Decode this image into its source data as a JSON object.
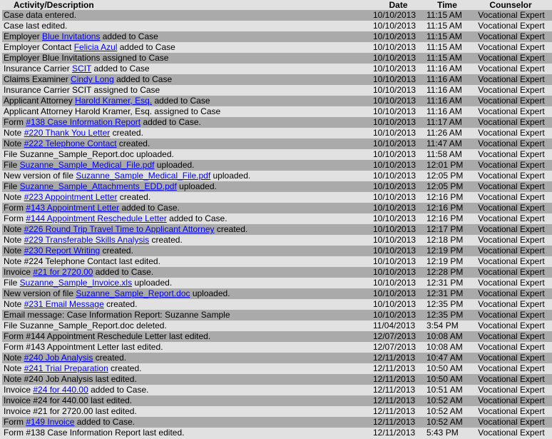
{
  "headers": {
    "activity": "Activity/Description",
    "date": "Date",
    "time": "Time",
    "counselor": "Counselor"
  },
  "colors": {
    "row_dark": "#aaaaaa",
    "row_light": "#e1e1e1",
    "link": "#0000ee"
  },
  "rows": [
    {
      "pre": "Case data entered.",
      "link": "",
      "post": "",
      "date": "10/10/2013",
      "time": "11:15 AM",
      "counselor": "Vocational Expert"
    },
    {
      "pre": "Case last edited.",
      "link": "",
      "post": "",
      "date": "10/10/2013",
      "time": "11:15 AM",
      "counselor": "Vocational Expert"
    },
    {
      "pre": "Employer ",
      "link": "Blue Invitations",
      "post": " added to Case",
      "date": "10/10/2013",
      "time": "11:15 AM",
      "counselor": "Vocational Expert"
    },
    {
      "pre": "Employer Contact ",
      "link": "Felicia Azul",
      "post": " added to Case",
      "date": "10/10/2013",
      "time": "11:15 AM",
      "counselor": "Vocational Expert"
    },
    {
      "pre": "Employer Blue Invitations assigned to Case",
      "link": "",
      "post": "",
      "date": "10/10/2013",
      "time": "11:15 AM",
      "counselor": "Vocational Expert"
    },
    {
      "pre": "Insurance Carrier ",
      "link": "SCIT",
      "post": " added to Case",
      "date": "10/10/2013",
      "time": "11:16 AM",
      "counselor": "Vocational Expert"
    },
    {
      "pre": "Claims Examiner ",
      "link": "Cindy Long",
      "post": " added to Case",
      "date": "10/10/2013",
      "time": "11:16 AM",
      "counselor": "Vocational Expert"
    },
    {
      "pre": "Insurance Carrier SCIT assigned to Case",
      "link": "",
      "post": "",
      "date": "10/10/2013",
      "time": "11:16 AM",
      "counselor": "Vocational Expert"
    },
    {
      "pre": "Applicant Attorney ",
      "link": "Harold Kramer, Esq.",
      "post": " added to Case",
      "date": "10/10/2013",
      "time": "11:16 AM",
      "counselor": "Vocational Expert"
    },
    {
      "pre": "Applicant Attorney Harold Kramer, Esq. assigned to Case",
      "link": "",
      "post": "",
      "date": "10/10/2013",
      "time": "11:16 AM",
      "counselor": "Vocational Expert"
    },
    {
      "pre": "Form ",
      "link": "#138 Case Information Report",
      "post": " added to Case.",
      "date": "10/10/2013",
      "time": "11:17 AM",
      "counselor": "Vocational Expert"
    },
    {
      "pre": "Note ",
      "link": "#220 Thank You Letter",
      "post": " created.",
      "date": "10/10/2013",
      "time": "11:26 AM",
      "counselor": "Vocational Expert"
    },
    {
      "pre": "Note ",
      "link": "#222 Telephone Contact",
      "post": " created.",
      "date": "10/10/2013",
      "time": "11:47 AM",
      "counselor": "Vocational Expert"
    },
    {
      "pre": "File Suzanne_Sample_Report.doc uploaded.",
      "link": "",
      "post": "",
      "date": "10/10/2013",
      "time": "11:58 AM",
      "counselor": "Vocational Expert"
    },
    {
      "pre": "File ",
      "link": "Suzanne_Sample_Medical_File.pdf",
      "post": " uploaded.",
      "date": "10/10/2013",
      "time": "12:01 PM",
      "counselor": "Vocational Expert"
    },
    {
      "pre": "New version of file ",
      "link": "Suzanne_Sample_Medical_File.pdf",
      "post": " uploaded.",
      "date": "10/10/2013",
      "time": "12:05 PM",
      "counselor": "Vocational Expert"
    },
    {
      "pre": "File ",
      "link": "Suzanne_Sample_Attachments_EDD.pdf",
      "post": " uploaded.",
      "date": "10/10/2013",
      "time": "12:05 PM",
      "counselor": "Vocational Expert"
    },
    {
      "pre": "Note ",
      "link": "#223 Appointment Letter",
      "post": " created.",
      "date": "10/10/2013",
      "time": "12:16 PM",
      "counselor": "Vocational Expert"
    },
    {
      "pre": "Form ",
      "link": "#143 Appointment Letter",
      "post": " added to Case.",
      "date": "10/10/2013",
      "time": "12:16 PM",
      "counselor": "Vocational Expert"
    },
    {
      "pre": "Form ",
      "link": "#144 Appointment Reschedule Letter",
      "post": " added to Case.",
      "date": "10/10/2013",
      "time": "12:16 PM",
      "counselor": "Vocational Expert"
    },
    {
      "pre": "Note ",
      "link": "#226 Round Trip Travel Time to Applicant Attorney",
      "post": " created.",
      "date": "10/10/2013",
      "time": "12:17 PM",
      "counselor": "Vocational Expert"
    },
    {
      "pre": "Note ",
      "link": "#229 Transferable Skills Analysis",
      "post": " created.",
      "date": "10/10/2013",
      "time": "12:18 PM",
      "counselor": "Vocational Expert"
    },
    {
      "pre": "Note ",
      "link": "#230 Report Writing",
      "post": " created.",
      "date": "10/10/2013",
      "time": "12:19 PM",
      "counselor": "Vocational Expert"
    },
    {
      "pre": "Note #224 Telephone Contact last edited.",
      "link": "",
      "post": "",
      "date": "10/10/2013",
      "time": "12:19 PM",
      "counselor": "Vocational Expert"
    },
    {
      "pre": "Invoice ",
      "link": "#21 for 2720.00",
      "post": " added to Case.",
      "date": "10/10/2013",
      "time": "12:28 PM",
      "counselor": "Vocational Expert"
    },
    {
      "pre": "File ",
      "link": "Suzanne_Sample_Invoice.xls",
      "post": " uploaded.",
      "date": "10/10/2013",
      "time": "12:31 PM",
      "counselor": "Vocational Expert"
    },
    {
      "pre": "New version of file ",
      "link": "Suzanne_Sample_Report.doc",
      "post": " uploaded.",
      "date": "10/10/2013",
      "time": "12:31 PM",
      "counselor": "Vocational Expert"
    },
    {
      "pre": "Note ",
      "link": "#231 Email Message",
      "post": " created.",
      "date": "10/10/2013",
      "time": "12:35 PM",
      "counselor": "Vocational Expert"
    },
    {
      "pre": "Email message: Case Information Report: Suzanne Sample",
      "link": "",
      "post": "",
      "date": "10/10/2013",
      "time": "12:35 PM",
      "counselor": "Vocational Expert"
    },
    {
      "pre": "File Suzanne_Sample_Report.doc deleted.",
      "link": "",
      "post": "",
      "date": "11/04/2013",
      "time": "3:54 PM",
      "counselor": "Vocational Expert"
    },
    {
      "pre": "Form #144 Appointment Reschedule Letter last edited.",
      "link": "",
      "post": "",
      "date": "12/07/2013",
      "time": "10:08 AM",
      "counselor": "Vocational Expert"
    },
    {
      "pre": "Form #143 Appointment Letter last edited.",
      "link": "",
      "post": "",
      "date": "12/07/2013",
      "time": "10:08 AM",
      "counselor": "Vocational Expert"
    },
    {
      "pre": "Note ",
      "link": "#240 Job Analysis",
      "post": " created.",
      "date": "12/11/2013",
      "time": "10:47 AM",
      "counselor": "Vocational Expert"
    },
    {
      "pre": "Note ",
      "link": "#241 Trial Preparation",
      "post": " created.",
      "date": "12/11/2013",
      "time": "10:50 AM",
      "counselor": "Vocational Expert"
    },
    {
      "pre": "Note #240 Job Analysis last edited.",
      "link": "",
      "post": "",
      "date": "12/11/2013",
      "time": "10:50 AM",
      "counselor": "Vocational Expert"
    },
    {
      "pre": "Invoice ",
      "link": "#24 for 440.00",
      "post": " added to Case.",
      "date": "12/11/2013",
      "time": "10:51 AM",
      "counselor": "Vocational Expert"
    },
    {
      "pre": "Invoice #24 for 440.00 last edited.",
      "link": "",
      "post": "",
      "date": "12/11/2013",
      "time": "10:52 AM",
      "counselor": "Vocational Expert"
    },
    {
      "pre": "Invoice #21 for 2720.00 last edited.",
      "link": "",
      "post": "",
      "date": "12/11/2013",
      "time": "10:52 AM",
      "counselor": "Vocational Expert"
    },
    {
      "pre": "Form ",
      "link": "#149 Invoice",
      "post": " added to Case.",
      "date": "12/11/2013",
      "time": "10:52 AM",
      "counselor": "Vocational Expert"
    },
    {
      "pre": "Form #138 Case Information Report last edited.",
      "link": "",
      "post": "",
      "date": "12/11/2013",
      "time": "5:43 PM",
      "counselor": "Vocational Expert"
    }
  ]
}
